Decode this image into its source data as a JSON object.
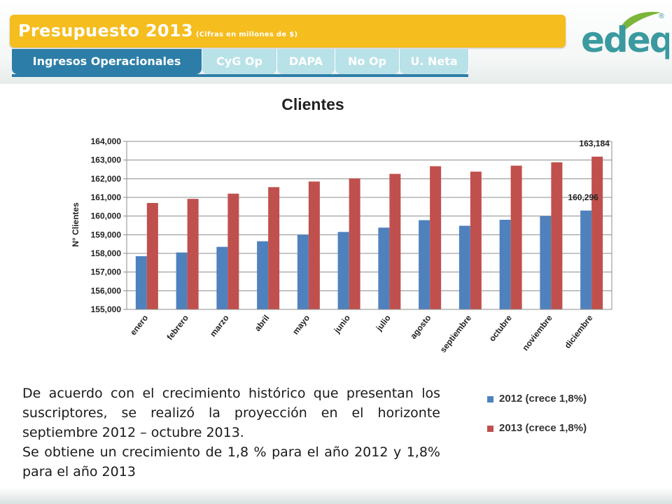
{
  "header": {
    "title": "Presupuesto 2013",
    "subtitle": "(Cifras en millones de $)",
    "tabs": [
      {
        "label": "Ingresos Operacionales",
        "active": true
      },
      {
        "label": "CyG Op",
        "active": false
      },
      {
        "label": "DAPA",
        "active": false
      },
      {
        "label": "No Op",
        "active": false
      },
      {
        "label": "U. Neta",
        "active": false
      }
    ]
  },
  "logo": {
    "text": "edeq",
    "mark": "®"
  },
  "colors": {
    "accent_yellow": "#f5bd1d",
    "tab_active": "#2c7ea8",
    "tab_inactive": "#b9e1e8",
    "series_2012": "#4f81bd",
    "series_2013": "#c0504d",
    "logo_green": "#7bb63a"
  },
  "chart_data": {
    "type": "bar",
    "title": "Clientes",
    "ylabel": "N° Clientes",
    "xlabel": "",
    "ylim": [
      155000,
      164000
    ],
    "ytick_step": 1000,
    "ytick_labels": [
      "155,000",
      "156,000",
      "157,000",
      "158,000",
      "159,000",
      "160,000",
      "161,000",
      "162,000",
      "163,000",
      "164,000"
    ],
    "grid": true,
    "categories": [
      "enero",
      "febrero",
      "marzo",
      "abril",
      "mayo",
      "junio",
      "julio",
      "agosto",
      "septiembre",
      "octubre",
      "noviembre",
      "diciembre"
    ],
    "series": [
      {
        "name": "2012 (crece 1,8%)",
        "color": "#4f81bd",
        "values": [
          157850,
          158050,
          158350,
          158650,
          159000,
          159150,
          159380,
          159780,
          159480,
          159800,
          160000,
          160296
        ]
      },
      {
        "name": "2013 (crece 1,8%)",
        "color": "#c0504d",
        "values": [
          160700,
          160920,
          161200,
          161550,
          161850,
          162020,
          162260,
          162670,
          162380,
          162700,
          162880,
          163184
        ]
      }
    ],
    "data_labels": [
      {
        "series": 0,
        "index": 11,
        "text": "160,296"
      },
      {
        "series": 1,
        "index": 11,
        "text": "163,184"
      }
    ],
    "legend_position": "bottom-right"
  },
  "description": [
    "De acuerdo con el crecimiento histórico que presentan los suscriptores, se realizó la proyección en el horizonte septiembre 2012 – octubre 2013.",
    "Se obtiene un crecimiento de 1,8 % para el año 2012 y  1,8% para el año 2013"
  ]
}
